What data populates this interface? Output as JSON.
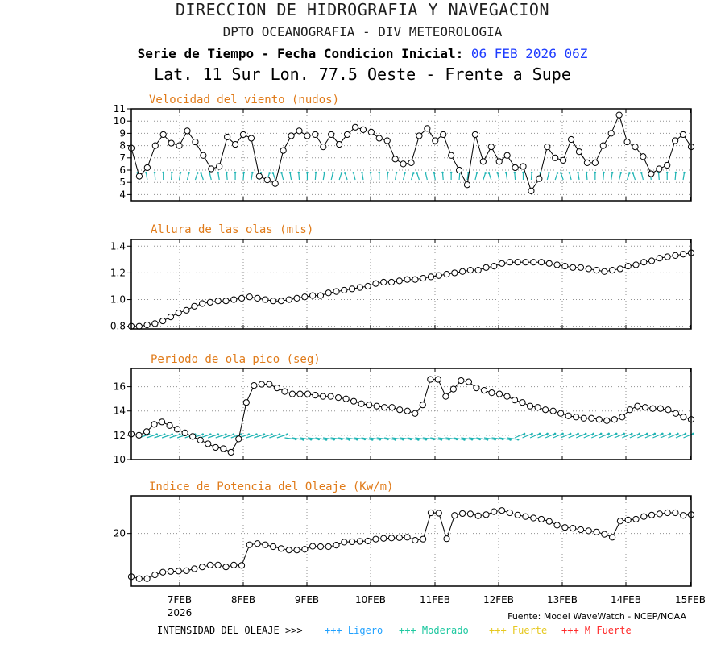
{
  "header": {
    "line1": "DIRECCION DE HIDROGRAFIA Y NAVEGACION",
    "line2": "DPTO OCEANOGRAFIA - DIV METEOROLOGIA",
    "line3_label": "Serie de Tiempo - Fecha Condicion Inicial:",
    "line3_date": "06 FEB 2026 06Z",
    "line4": "Lat. 11 Sur  Lon. 77.5 Oeste - Frente a Supe"
  },
  "footer": {
    "source": "Fuente: Model WaveWatch - NCEP/NOAA",
    "intensity_label": "INTENSIDAD DEL OLEAJE >>>",
    "legend": [
      {
        "label": "+++ Ligero",
        "color": "#1ea0ff"
      },
      {
        "label": "+++ Moderado",
        "color": "#1ec8a0"
      },
      {
        "label": "+++ Fuerte",
        "color": "#e6c81e"
      },
      {
        "label": "+++ M Fuerte",
        "color": "#ff2a2a"
      }
    ]
  },
  "colors": {
    "axis": "#000000",
    "grid": "#909090",
    "arrows": "#1eb4b4",
    "title": "#e07b1a"
  },
  "chart_data": [
    {
      "type": "line",
      "title": "Velocidad del viento (nudos)",
      "ylim": [
        3.5,
        11
      ],
      "yticks": [
        4,
        5,
        6,
        7,
        8,
        9,
        10,
        11
      ],
      "xticks": [
        "7FEB",
        "8FEB",
        "9FEB",
        "10FEB",
        "11FEB",
        "12FEB",
        "13FEB",
        "14FEB",
        "15FEB"
      ],
      "x_year": "2026",
      "values": [
        7.8,
        5.5,
        6.2,
        8.0,
        8.9,
        8.2,
        8.0,
        9.2,
        8.3,
        7.2,
        6.1,
        6.3,
        8.7,
        8.1,
        8.9,
        8.6,
        5.5,
        5.2,
        4.9,
        7.6,
        8.8,
        9.2,
        8.8,
        8.9,
        7.9,
        8.9,
        8.1,
        8.9,
        9.5,
        9.3,
        9.1,
        8.6,
        8.4,
        6.9,
        6.5,
        6.6,
        8.8,
        9.4,
        8.4,
        8.9,
        7.2,
        6.0,
        4.8,
        8.9,
        6.7,
        7.9,
        6.7,
        7.2,
        6.2,
        6.3,
        4.3,
        5.3,
        7.9,
        7.0,
        6.8,
        8.5,
        7.5,
        6.6,
        6.6,
        8.0,
        9.0,
        10.5,
        8.3,
        7.9,
        7.1,
        5.7,
        6.1,
        6.4,
        8.4,
        8.9,
        7.9
      ],
      "has_arrows": true
    },
    {
      "type": "line",
      "title": "Altura de las olas (mts)",
      "ylim": [
        0.78,
        1.45
      ],
      "yticks": [
        0.8,
        1.0,
        1.2,
        1.4
      ],
      "ytick_labels": [
        "0.8",
        "1.0",
        "1.2",
        "1.4"
      ],
      "values": [
        0.8,
        0.8,
        0.81,
        0.82,
        0.84,
        0.87,
        0.9,
        0.92,
        0.95,
        0.97,
        0.98,
        0.99,
        0.99,
        1.0,
        1.01,
        1.02,
        1.01,
        1.0,
        0.99,
        0.99,
        1.0,
        1.01,
        1.02,
        1.03,
        1.03,
        1.05,
        1.06,
        1.07,
        1.08,
        1.09,
        1.1,
        1.12,
        1.13,
        1.13,
        1.14,
        1.15,
        1.15,
        1.16,
        1.17,
        1.18,
        1.19,
        1.2,
        1.21,
        1.22,
        1.22,
        1.24,
        1.25,
        1.27,
        1.28,
        1.28,
        1.28,
        1.28,
        1.28,
        1.27,
        1.26,
        1.25,
        1.24,
        1.24,
        1.23,
        1.22,
        1.21,
        1.22,
        1.23,
        1.25,
        1.26,
        1.28,
        1.29,
        1.31,
        1.32,
        1.33,
        1.34,
        1.35
      ]
    },
    {
      "type": "line",
      "title": "Periodo de ola pico (seg)",
      "ylim": [
        10,
        17.5
      ],
      "yticks": [
        10,
        12,
        14,
        16
      ],
      "values": [
        12.1,
        12.0,
        12.3,
        12.9,
        13.1,
        12.8,
        12.5,
        12.2,
        11.9,
        11.6,
        11.3,
        11.0,
        10.9,
        10.6,
        11.7,
        14.7,
        16.1,
        16.2,
        16.2,
        15.9,
        15.6,
        15.4,
        15.4,
        15.4,
        15.3,
        15.2,
        15.2,
        15.1,
        15.0,
        14.8,
        14.6,
        14.5,
        14.4,
        14.3,
        14.3,
        14.1,
        14.0,
        13.8,
        14.5,
        16.6,
        16.6,
        15.2,
        15.8,
        16.5,
        16.4,
        15.9,
        15.7,
        15.5,
        15.4,
        15.2,
        14.9,
        14.7,
        14.4,
        14.3,
        14.1,
        14.0,
        13.8,
        13.6,
        13.5,
        13.4,
        13.4,
        13.3,
        13.2,
        13.3,
        13.5,
        14.1,
        14.4,
        14.3,
        14.2,
        14.2,
        14.1,
        13.8,
        13.5,
        13.3
      ],
      "has_arrows": true
    },
    {
      "type": "line",
      "title": "Indice de Potencia del Oleaje (Kw/m)",
      "ylim": [
        6,
        30
      ],
      "yticks": [
        20
      ],
      "values": [
        8.5,
        8.0,
        8.0,
        9.0,
        9.7,
        9.9,
        10.0,
        10.1,
        10.6,
        11.1,
        11.6,
        11.6,
        11.1,
        11.6,
        11.5,
        17.0,
        17.3,
        17.0,
        16.5,
        16.0,
        15.6,
        15.6,
        15.8,
        16.6,
        16.5,
        16.5,
        16.9,
        17.7,
        17.8,
        17.9,
        18.0,
        18.5,
        18.7,
        18.8,
        18.9,
        19.0,
        18.2,
        18.5,
        25.5,
        25.4,
        18.6,
        24.8,
        25.3,
        25.2,
        24.7,
        25.0,
        25.8,
        26.1,
        25.5,
        24.9,
        24.5,
        24.1,
        23.8,
        23.2,
        22.2,
        21.6,
        21.4,
        21.0,
        20.7,
        20.4,
        19.8,
        19.0,
        23.3,
        23.6,
        23.8,
        24.5,
        24.9,
        25.2,
        25.5,
        25.5,
        24.8,
        25.0
      ]
    }
  ]
}
